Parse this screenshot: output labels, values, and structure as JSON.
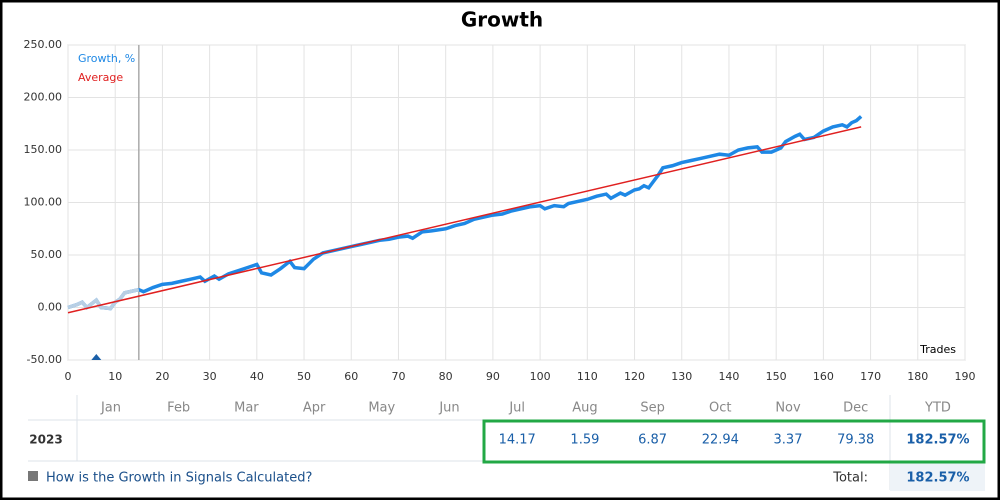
{
  "chart_data": {
    "type": "line",
    "title": "Growth",
    "x_label": "Trades",
    "xlim": [
      0,
      190
    ],
    "ylim": [
      -50,
      250
    ],
    "xticks": [
      0,
      10,
      20,
      30,
      40,
      50,
      60,
      70,
      80,
      90,
      100,
      110,
      120,
      130,
      140,
      150,
      160,
      170,
      180,
      190
    ],
    "yticks": [
      {
        "value": -50,
        "label": "-50.00"
      },
      {
        "value": 0,
        "label": "0.00"
      },
      {
        "value": 50,
        "label": "50.00"
      },
      {
        "value": 100,
        "label": "100.00"
      },
      {
        "value": 150,
        "label": "150.00"
      },
      {
        "value": 200,
        "label": "200.00"
      },
      {
        "value": 250,
        "label": "250.00"
      }
    ],
    "grid": true,
    "legend": "top-left",
    "marker_x": 15,
    "pre_marker_color": "#b8cfe4",
    "deposit_x": [
      6
    ],
    "series": [
      {
        "name": "Growth, %",
        "color": "#1e88e5",
        "x": [
          0,
          2,
          3,
          4,
          6,
          7,
          9,
          10,
          11,
          12,
          14,
          15,
          16,
          18,
          20,
          22,
          24,
          26,
          28,
          29,
          31,
          32,
          34,
          36,
          38,
          40,
          41,
          43,
          45,
          47,
          48,
          50,
          52,
          54,
          56,
          58,
          60,
          62,
          64,
          66,
          68,
          70,
          72,
          73,
          75,
          77,
          80,
          82,
          84,
          86,
          88,
          90,
          92,
          94,
          96,
          98,
          100,
          101,
          103,
          105,
          106,
          108,
          110,
          112,
          114,
          115,
          117,
          118,
          120,
          121,
          122,
          123,
          124,
          125,
          126,
          128,
          130,
          132,
          134,
          136,
          138,
          140,
          142,
          144,
          146,
          147,
          149,
          151,
          152,
          154,
          155,
          156,
          158,
          160,
          162,
          164,
          165,
          166,
          167,
          168
        ],
        "values": [
          0,
          3,
          5,
          0,
          7,
          0,
          -1,
          5,
          8,
          14,
          16,
          17,
          15,
          19,
          22,
          23,
          25,
          27,
          29,
          25,
          30,
          27,
          32,
          35,
          38,
          41,
          33,
          31,
          37,
          44,
          38,
          37,
          46,
          52,
          54,
          56,
          58,
          60,
          62,
          64,
          65,
          67,
          68,
          66,
          72,
          73,
          75,
          78,
          80,
          84,
          86,
          88,
          89,
          92,
          94,
          96,
          97,
          94,
          97,
          96,
          99,
          101,
          103,
          106,
          108,
          104,
          109,
          107,
          112,
          113,
          116,
          114,
          120,
          126,
          133,
          135,
          138,
          140,
          142,
          144,
          146,
          145,
          150,
          152,
          153,
          148,
          148,
          152,
          158,
          163,
          165,
          160,
          162,
          168,
          172,
          174,
          172,
          176,
          178,
          182
        ]
      },
      {
        "name": "Average",
        "color": "#e02020",
        "x": [
          0,
          168
        ],
        "values": [
          -5,
          172
        ]
      }
    ]
  },
  "table": {
    "header": [
      "Jan",
      "Feb",
      "Mar",
      "Apr",
      "May",
      "Jun",
      "Jul",
      "Aug",
      "Sep",
      "Oct",
      "Nov",
      "Dec",
      "YTD"
    ],
    "year": "2023",
    "values": [
      null,
      null,
      null,
      null,
      null,
      null,
      14.17,
      1.59,
      6.87,
      22.94,
      3.37,
      79.38
    ],
    "ytd": "182.57%",
    "link": "How is the Growth in Signals Calculated?",
    "total_label": "Total:",
    "total": "182.57%"
  }
}
